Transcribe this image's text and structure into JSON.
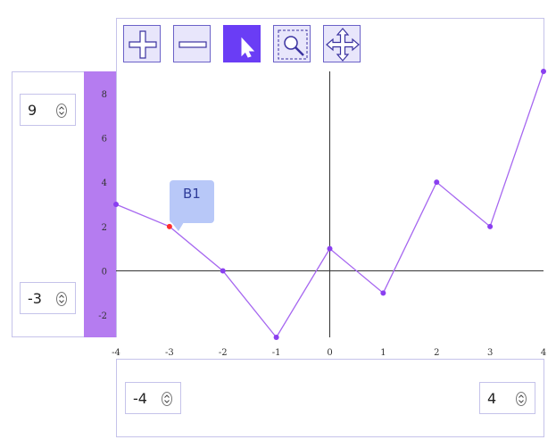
{
  "toolbar": {
    "tools": [
      {
        "icon": "plus-icon",
        "active": false
      },
      {
        "icon": "minus-icon",
        "active": false
      },
      {
        "icon": "pointer-icon",
        "active": true
      },
      {
        "icon": "zoom-select-icon",
        "active": false
      },
      {
        "icon": "pan-move-icon",
        "active": false
      }
    ]
  },
  "y_range": {
    "max": "9",
    "min": "-3"
  },
  "x_range": {
    "min": "-4",
    "max": "4"
  },
  "tooltip": {
    "label": "B1"
  },
  "colors": {
    "accent": "#6a3df5",
    "line": "#a667f0",
    "point": "#8a3ff0",
    "highlight": "#ff2d2d",
    "band": "#b57cf0"
  },
  "chart_data": {
    "type": "line",
    "x": [
      -4,
      -3,
      -2,
      -1,
      0,
      1,
      2,
      3,
      4
    ],
    "series": [
      {
        "values": [
          3,
          2,
          0,
          -3,
          1,
          -1,
          4,
          2,
          9
        ]
      }
    ],
    "highlight_index": 1,
    "xlim": [
      -4,
      4
    ],
    "ylim": [
      -3,
      9
    ],
    "x_ticks": [
      "-4",
      "-3",
      "-2",
      "-1",
      "0",
      "1",
      "2",
      "3",
      "4"
    ],
    "y_ticks": [
      "-2",
      "0",
      "2",
      "4",
      "6",
      "8"
    ]
  }
}
